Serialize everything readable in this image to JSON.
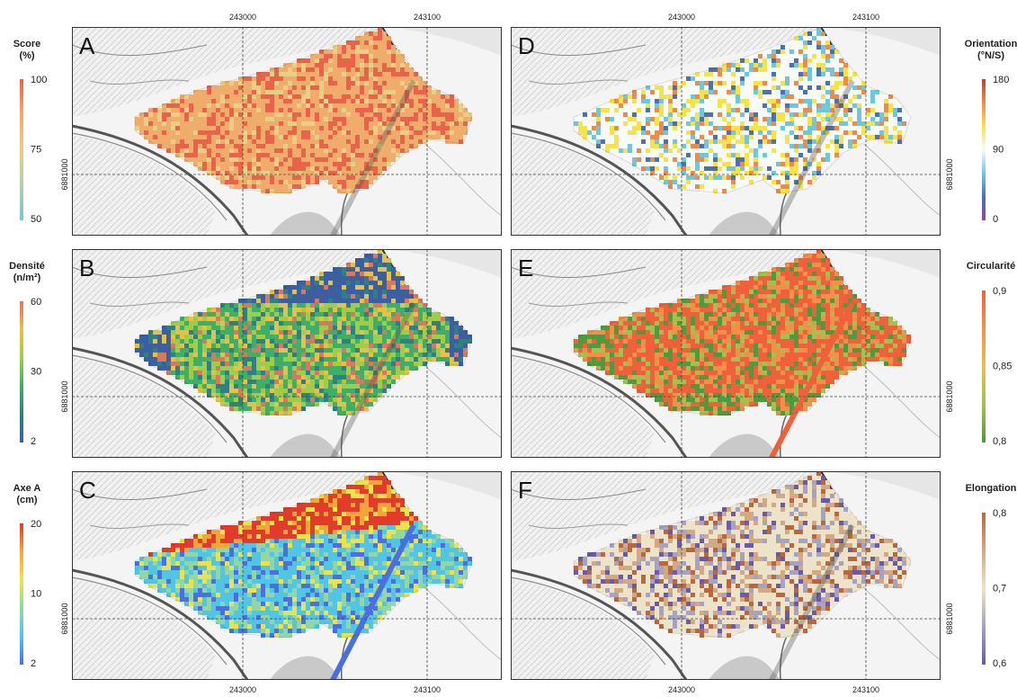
{
  "coords": {
    "easting_left": "243000",
    "easting_right": "243100",
    "northing": "6881000"
  },
  "panels": [
    {
      "id": "A",
      "label": "A",
      "pattern": "score",
      "legend": {
        "title_lines": [
          "Score",
          "(%)"
        ],
        "ticks": [
          "100",
          "75",
          "50"
        ],
        "colors": [
          "#e8634a",
          "#efac6a",
          "#e9cf86",
          "#b7cfae",
          "#7fbfd9"
        ]
      }
    },
    {
      "id": "B",
      "label": "B",
      "pattern": "density",
      "legend": {
        "title_lines": [
          "Densité",
          "(n/m²)"
        ],
        "ticks": [
          "60",
          "30",
          "2"
        ],
        "colors": [
          "#d9785f",
          "#e6c04a",
          "#9fcc49",
          "#3fae6a",
          "#2f8080",
          "#3b5fa0"
        ]
      }
    },
    {
      "id": "C",
      "label": "C",
      "pattern": "axeA",
      "legend": {
        "title_lines": [
          "Axe A",
          "(cm)"
        ],
        "ticks": [
          "20",
          "10",
          "2"
        ],
        "colors": [
          "#e23a2b",
          "#f2a63a",
          "#e9e44d",
          "#8fd7a6",
          "#52c4e6",
          "#4a6fe0"
        ]
      }
    },
    {
      "id": "D",
      "label": "D",
      "pattern": "orientation",
      "legend": {
        "title_lines": [
          "Orientation",
          "(°N/S)"
        ],
        "ticks": [
          "180",
          "90",
          "0"
        ],
        "colors": [
          "#b5443b",
          "#ee8a4a",
          "#f5e34a",
          "#f8fbf8",
          "#6fc7df",
          "#4a72b0",
          "#8a4aa0"
        ]
      }
    },
    {
      "id": "E",
      "label": "E",
      "pattern": "circularity",
      "legend": {
        "title_lines": [
          "Circularité"
        ],
        "ticks": [
          "0,9",
          "0,85",
          "0,8"
        ],
        "colors": [
          "#f0603b",
          "#f19048",
          "#e4c24f",
          "#a7bf4e",
          "#4f9a3c"
        ]
      }
    },
    {
      "id": "F",
      "label": "F",
      "pattern": "elongation",
      "legend": {
        "title_lines": [
          "Elongation"
        ],
        "ticks": [
          "0,8",
          "0,7",
          "0,6"
        ],
        "colors": [
          "#b9683e",
          "#d2a984",
          "#ece3c8",
          "#a6a2c2",
          "#6b5aa4"
        ]
      }
    }
  ]
}
